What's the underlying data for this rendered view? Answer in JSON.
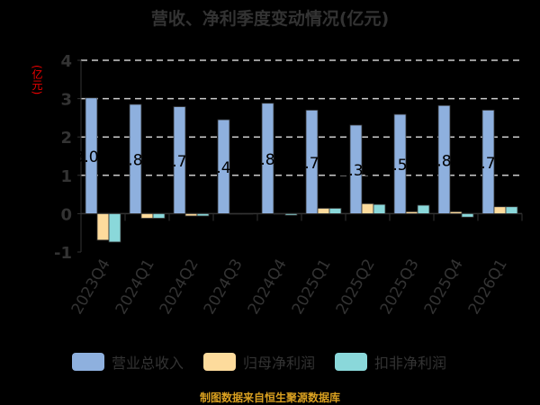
{
  "chart_data": {
    "type": "bar",
    "title": "营收、净利季度变动情况(亿元)",
    "ylabel": "(亿元)",
    "ylim": [
      -1,
      4
    ],
    "yticks": [
      -1,
      0,
      1,
      2,
      3,
      4
    ],
    "grid": true,
    "legend_position": "bottom",
    "categories": [
      "2023Q4",
      "2024Q1",
      "2024Q2",
      "2024Q3",
      "2024Q4",
      "2025Q1",
      "2025Q2",
      "2025Q3",
      "2025Q4",
      "2026Q1"
    ],
    "series": [
      {
        "name": "营业总收入",
        "color": "#8eb0de",
        "values": [
          3.02,
          2.85,
          2.79,
          2.45,
          2.88,
          2.7,
          2.31,
          2.59,
          2.82,
          2.7
        ],
        "labels": [
          "3.02",
          "2.85",
          "2.79",
          "2.45",
          "2.88",
          "2.70",
          "2.31",
          "2.59",
          "2.82",
          "2.70"
        ]
      },
      {
        "name": "归母净利润",
        "color": "#fddb9c",
        "values": [
          -0.69,
          -0.12,
          -0.06,
          0.0,
          -0.01,
          0.14,
          0.26,
          0.05,
          0.05,
          0.18
        ]
      },
      {
        "name": "扣非净利润",
        "color": "#8ad8da",
        "values": [
          -0.74,
          -0.12,
          -0.06,
          0.0,
          -0.04,
          0.14,
          0.24,
          0.22,
          -0.09,
          0.18
        ]
      }
    ]
  },
  "footer": "制图数据来自恒生聚源数据库"
}
